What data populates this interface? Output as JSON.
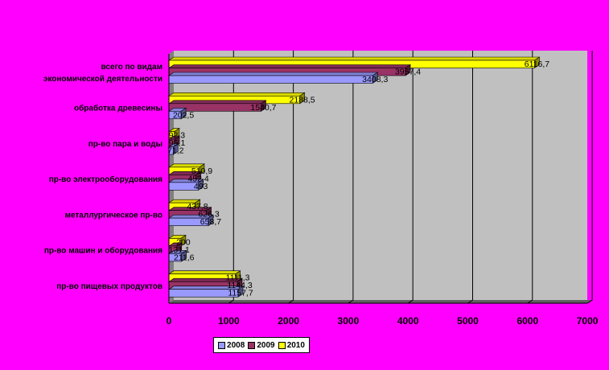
{
  "chart_data": {
    "type": "bar",
    "orientation": "horizontal",
    "categories": [
      "пр-во пищевых продуктов",
      "пр-во машин и оборудования",
      "металлургическое пр-во",
      "пр-во электрооборудования",
      "пр-во пара и воды",
      "обработка древесины",
      "всего по видам экономической деятельности"
    ],
    "category_lines": [
      [
        "пр-во пищевых продуктов"
      ],
      [
        "пр-во машин и оборудования"
      ],
      [
        "металлургическое пр-во"
      ],
      [
        "пр-во электрооборудования"
      ],
      [
        "пр-во пара и воды"
      ],
      [
        "обработка древесины"
      ],
      [
        "всего по видам",
        "экономической деятельности"
      ]
    ],
    "series": [
      {
        "name": "2008",
        "color": "#9999ff",
        "values": [
          1157.7,
          211.6,
          658.7,
          493,
          71.2,
          202.5,
          3408.3
        ],
        "labels": [
          "1157,7",
          "211,6",
          "658,7",
          "493",
          "71,2",
          "202,5",
          "3408,3"
        ]
      },
      {
        "name": "2009",
        "color": "#993366",
        "values": [
          1144.3,
          131.1,
          626.3,
          452.4,
          95.1,
          1540.7,
          3957.4
        ],
        "labels": [
          "1144,3",
          "131,1",
          "626,3",
          "452,4",
          "95,1",
          "1540,7",
          "3957,4"
        ]
      },
      {
        "name": "2010",
        "color": "#ffff00",
        "values": [
          1111.3,
          200,
          437.8,
          510.9,
          92.3,
          2188.5,
          6116.7
        ],
        "labels": [
          "1111,3",
          "200",
          "437,8",
          "510,9",
          "92,3",
          "2188,5",
          "6116,7"
        ]
      }
    ],
    "xlim": [
      0,
      7000
    ],
    "xticks": [
      0,
      1000,
      2000,
      3000,
      4000,
      5000,
      6000,
      7000
    ],
    "grid": true,
    "legend_position": "bottom"
  }
}
